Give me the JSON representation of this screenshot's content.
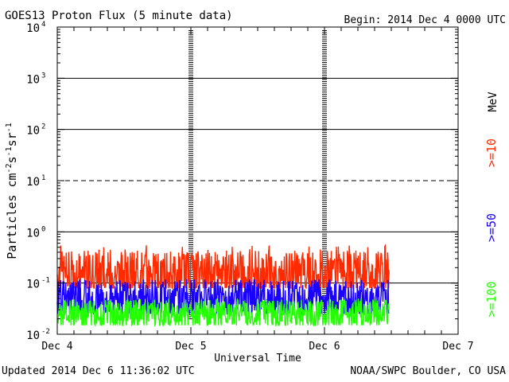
{
  "header": {
    "title": "GOES13 Proton Flux (5 minute data)",
    "begin": "Begin: 2014 Dec 4 0000 UTC"
  },
  "footer": {
    "updated": "Updated 2014 Dec  6 11:36:02 UTC",
    "source": "NOAA/SWPC Boulder, CO USA"
  },
  "chart_data": {
    "type": "line",
    "title": "GOES13 Proton Flux (5 minute data)",
    "xlabel": "Universal Time",
    "ylabel": "Particles cm-2s-1sr-1",
    "unit_label": "MeV",
    "yscale": "log",
    "ylim": [
      0.01,
      10000
    ],
    "xlim": [
      0,
      72
    ],
    "x_units": "hours since 2014 Dec 4 0000 UTC",
    "x_ticks": [
      "Dec 4",
      "Dec 5",
      "Dec 6",
      "Dec 7"
    ],
    "y_ticks": [
      {
        "value": 0.01,
        "base": "10",
        "exp": "-2"
      },
      {
        "value": 0.1,
        "base": "10",
        "exp": "-1"
      },
      {
        "value": 1,
        "base": "10",
        "exp": "0"
      },
      {
        "value": 10,
        "base": "10",
        "exp": "1"
      },
      {
        "value": 100,
        "base": "10",
        "exp": "2"
      },
      {
        "value": 1000,
        "base": "10",
        "exp": "3"
      },
      {
        "value": 10000,
        "base": "10",
        "exp": "4"
      }
    ],
    "threshold_lines": [
      {
        "value": 10,
        "style": "dashed"
      },
      {
        "value": 0.1,
        "style": "solid"
      }
    ],
    "grid": true,
    "legend_placement": "right, vertical",
    "series": [
      {
        "name": ">=10",
        "color": "#ff2a00",
        "typical": 0.15,
        "range": [
          0.08,
          0.55
        ],
        "end_hour": 59.6
      },
      {
        "name": ">=50",
        "color": "#1a00ff",
        "typical": 0.05,
        "range": [
          0.025,
          0.12
        ],
        "end_hour": 59.6
      },
      {
        "name": ">=100",
        "color": "#22ff00",
        "typical": 0.025,
        "range": [
          0.015,
          0.05
        ],
        "end_hour": 59.6
      }
    ]
  }
}
